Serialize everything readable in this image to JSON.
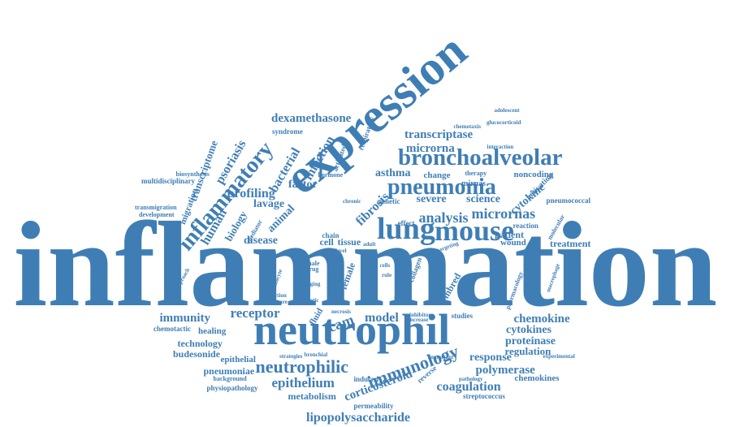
{
  "theme": {
    "word_color": "#3f7eb5",
    "background": "#ffffff"
  },
  "words": [
    {
      "text": "inflammation"
    },
    {
      "text": "expression"
    },
    {
      "text": "neutrophil"
    },
    {
      "text": "bronchoalveolar"
    },
    {
      "text": "lung"
    },
    {
      "text": "mouse"
    },
    {
      "text": "pneumonia"
    },
    {
      "text": "inflammatory"
    },
    {
      "text": "immunology"
    },
    {
      "text": "neutrophilic"
    },
    {
      "text": "analysis"
    },
    {
      "text": "micrornas"
    },
    {
      "text": "fibrosis"
    },
    {
      "text": "dexamethasone"
    },
    {
      "text": "transcriptase"
    },
    {
      "text": "microrna"
    },
    {
      "text": "asthma"
    },
    {
      "text": "change"
    },
    {
      "text": "noncoding"
    },
    {
      "text": "profiling"
    },
    {
      "text": "psoriasis"
    },
    {
      "text": "bacterial"
    },
    {
      "text": "infection"
    },
    {
      "text": "transcriptome"
    },
    {
      "text": "respiratory"
    },
    {
      "text": "activated"
    },
    {
      "text": "syndrome"
    },
    {
      "text": "chemotaxis"
    },
    {
      "text": "interaction"
    },
    {
      "text": "therapy"
    },
    {
      "text": "mirnas"
    },
    {
      "text": "adolescent"
    },
    {
      "text": "glucocorticoid"
    },
    {
      "text": "activation"
    },
    {
      "text": "cytokine"
    },
    {
      "text": "pneumococcal"
    },
    {
      "text": "severe"
    },
    {
      "text": "science"
    },
    {
      "text": "genetic"
    },
    {
      "text": "effect"
    },
    {
      "text": "reaction"
    },
    {
      "text": "patient"
    },
    {
      "text": "wound"
    },
    {
      "text": "treatment"
    },
    {
      "text": "molecular"
    },
    {
      "text": "factor"
    },
    {
      "text": "lavage"
    },
    {
      "text": "animal"
    },
    {
      "text": "disease"
    },
    {
      "text": "cell"
    },
    {
      "text": "tissue"
    },
    {
      "text": "human"
    },
    {
      "text": "biology"
    },
    {
      "text": "migration"
    },
    {
      "text": "biosynthesis"
    },
    {
      "text": "multidisciplinary"
    },
    {
      "text": "transmigration"
    },
    {
      "text": "development"
    },
    {
      "text": "immunity"
    },
    {
      "text": "receptor"
    },
    {
      "text": "fluid"
    },
    {
      "text": "icam"
    },
    {
      "text": "model"
    },
    {
      "text": "chemotactic"
    },
    {
      "text": "healing"
    },
    {
      "text": "technology"
    },
    {
      "text": "budesonide"
    },
    {
      "text": "epithelial"
    },
    {
      "text": "pneumoniae"
    },
    {
      "text": "background"
    },
    {
      "text": "physiopathology"
    },
    {
      "text": "epithelium"
    },
    {
      "text": "metabolism"
    },
    {
      "text": "lipopolysaccharide"
    },
    {
      "text": "corticosteroid"
    },
    {
      "text": "permeability"
    },
    {
      "text": "induced"
    },
    {
      "text": "reverse"
    },
    {
      "text": "coagulation"
    },
    {
      "text": "streptococcus"
    },
    {
      "text": "chemokine"
    },
    {
      "text": "cytokines"
    },
    {
      "text": "proteinase"
    },
    {
      "text": "regulation"
    },
    {
      "text": "response"
    },
    {
      "text": "polymerase"
    },
    {
      "text": "chemokines"
    },
    {
      "text": "pathology"
    },
    {
      "text": "experimental"
    },
    {
      "text": "studies"
    },
    {
      "text": "pharmacology"
    },
    {
      "text": "female"
    },
    {
      "text": "collagen"
    },
    {
      "text": "inbred"
    },
    {
      "text": "male"
    },
    {
      "text": "drug"
    },
    {
      "text": "aging"
    },
    {
      "text": "asthmatic"
    },
    {
      "text": "necrosis"
    },
    {
      "text": "level"
    },
    {
      "text": "adult"
    },
    {
      "text": "chain"
    },
    {
      "text": "sepsis"
    },
    {
      "text": "chronic"
    },
    {
      "text": "hormone"
    },
    {
      "text": "strategies"
    },
    {
      "text": "bronchial"
    },
    {
      "text": "important"
    },
    {
      "text": "approach"
    },
    {
      "text": "targeting"
    },
    {
      "text": "cells"
    },
    {
      "text": "rule"
    },
    {
      "text": "leukocyte"
    },
    {
      "text": "potential"
    },
    {
      "text": "inhibitor"
    },
    {
      "text": "increase"
    },
    {
      "text": "macrophage"
    },
    {
      "text": "fraction"
    },
    {
      "text": "pressure"
    },
    {
      "text": "mediator"
    }
  ]
}
